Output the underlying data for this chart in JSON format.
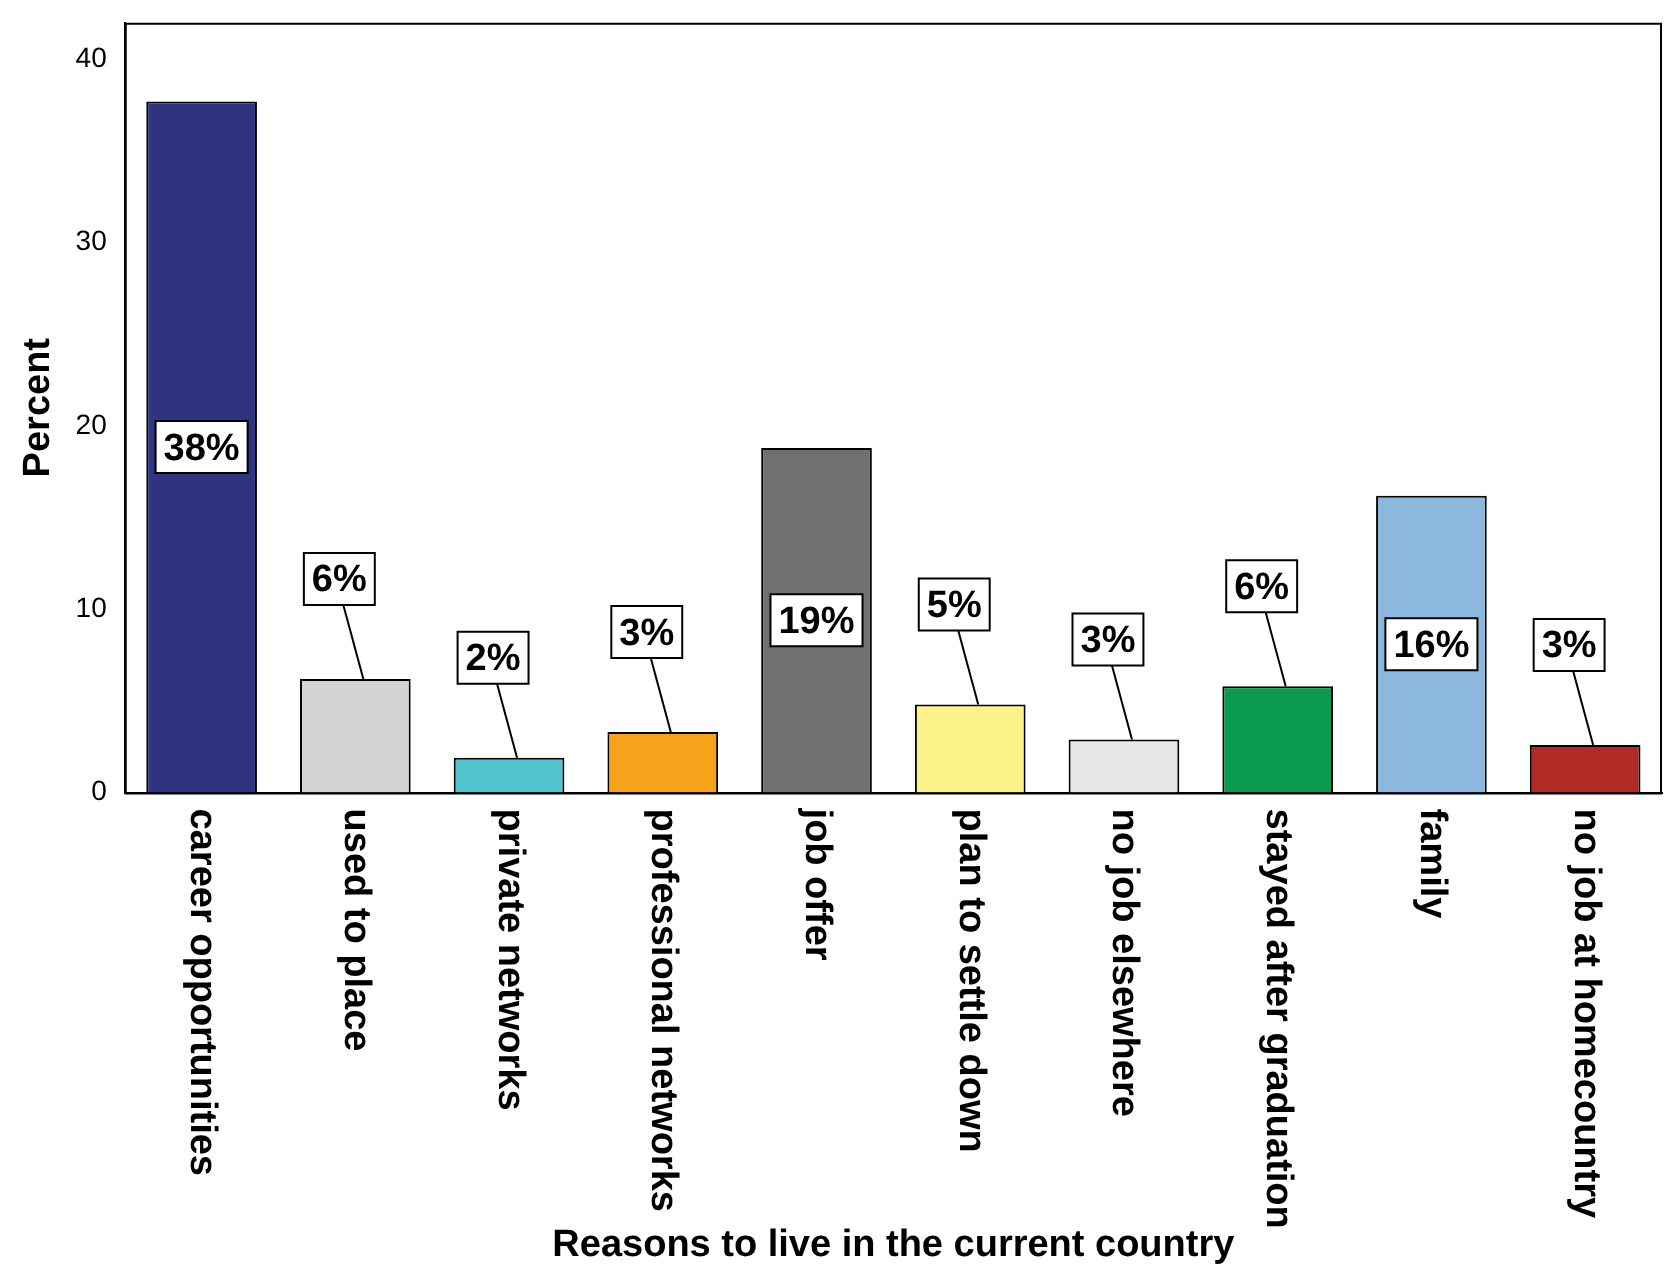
{
  "chart_data": {
    "type": "bar",
    "xlabel": "Reasons to live in the current country",
    "ylabel": "Percent",
    "categories": [
      "career opportunities",
      "used to place",
      "private networks",
      "professional networks",
      "job offer",
      "plan to settle down",
      "no job elsewhere",
      "stayed after graduation",
      "family",
      "no job at homecountry"
    ],
    "values": [
      37.7,
      6.2,
      1.9,
      3.3,
      18.8,
      4.8,
      2.9,
      5.8,
      16.2,
      2.6
    ],
    "value_labels": [
      "38%",
      "6%",
      "2%",
      "3%",
      "19%",
      "5%",
      "3%",
      "6%",
      "16%",
      "3%"
    ],
    "colors": [
      "#2e3480",
      "#d3d3d3",
      "#4fc4cc",
      "#f7a21b",
      "#707070",
      "#fdf28a",
      "#e6e6e6",
      "#0a9a4f",
      "#8db8dd",
      "#b02a26"
    ],
    "ylim": [
      0,
      42
    ],
    "yticks": [
      0,
      10,
      20,
      30,
      40
    ],
    "grid": false,
    "legend": false
  }
}
